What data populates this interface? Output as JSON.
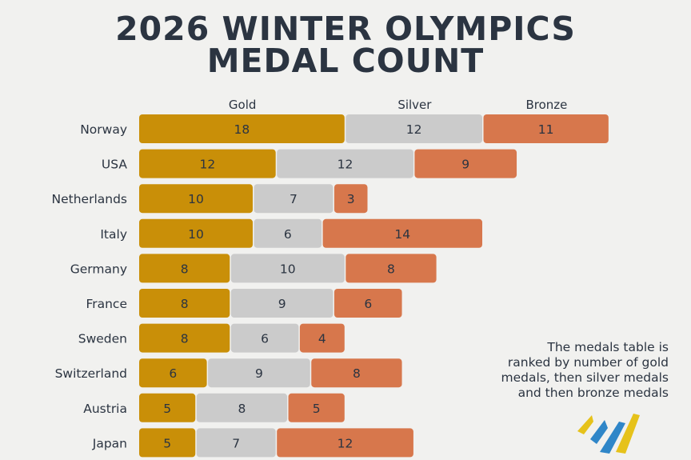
{
  "header": {
    "title_line_1": "2026 WINTER OLYMPICS",
    "title_line_2": "MEDAL COUNT"
  },
  "note": {
    "line_1": "The medals table is",
    "line_2": "ranked by number of gold",
    "line_3": "medals, then silver medals",
    "line_4": "and then bronze medals"
  },
  "colors": {
    "gold": "#c98f08",
    "silver": "#cbcbcb",
    "bronze": "#d7774c",
    "text": "#2b3441",
    "logo_yellow": "#e6c21a",
    "logo_blue": "#2f86c8"
  },
  "logo": {
    "icon": "olympics-logo-icon"
  },
  "chart_data": {
    "type": "bar",
    "orientation": "horizontal",
    "stacked": true,
    "categories": [
      "Norway",
      "USA",
      "Netherlands",
      "Italy",
      "Germany",
      "France",
      "Sweden",
      "Switzerland",
      "Austria",
      "Japan"
    ],
    "series": [
      {
        "name": "Gold",
        "values": [
          18,
          12,
          10,
          10,
          8,
          8,
          8,
          6,
          5,
          5
        ]
      },
      {
        "name": "Silver",
        "values": [
          12,
          12,
          7,
          6,
          10,
          9,
          6,
          9,
          8,
          7
        ]
      },
      {
        "name": "Bronze",
        "values": [
          11,
          9,
          3,
          14,
          8,
          6,
          4,
          8,
          5,
          12
        ]
      }
    ],
    "legend_placement": "top",
    "grid": false
  }
}
